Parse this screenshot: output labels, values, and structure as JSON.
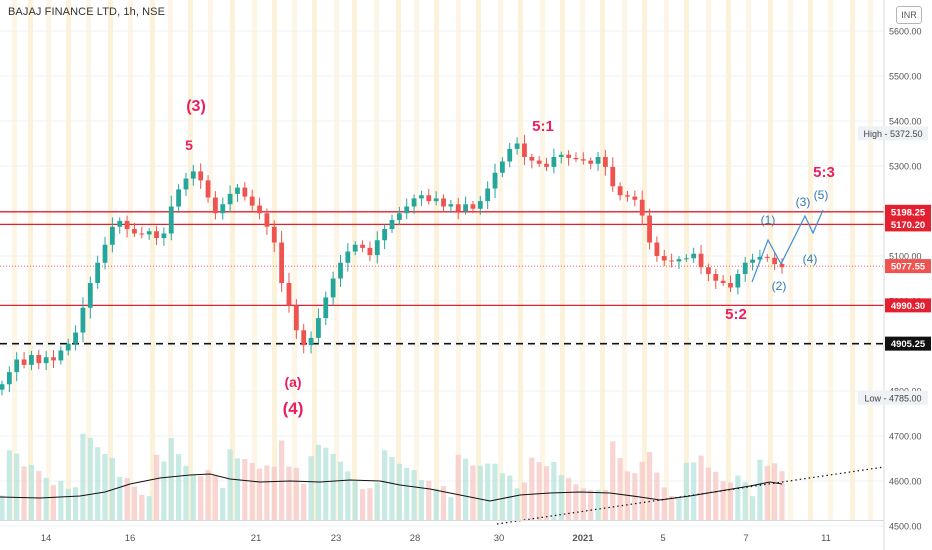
{
  "header": {
    "title": "BAJAJ FINANCE LTD, 1h, NSE",
    "currency": "INR"
  },
  "chart_data": {
    "type": "candlestick",
    "price_axis": {
      "ticks": [
        "5600.00",
        "5500.00",
        "5400.00",
        "5300.00",
        "5200.00",
        "5100.00",
        "5000.00",
        "4900.00",
        "4800.00",
        "4700.00",
        "4600.00",
        "4500.00"
      ]
    },
    "time_axis": {
      "ticks": [
        "14",
        "16",
        "21",
        "23",
        "28",
        "30",
        "2021",
        "5",
        "7",
        "11"
      ]
    },
    "high_label": "High - 5372.50",
    "low_label": "Low - 4785.00",
    "levels": [
      {
        "value": 5198.25,
        "label": "5198.25",
        "style": "solid",
        "color": "#e3202f"
      },
      {
        "value": 5170.2,
        "label": "5170.20",
        "style": "solid",
        "color": "#e3202f"
      },
      {
        "value": 5077.55,
        "label": "5077.55",
        "style": "dotted",
        "color": "#e3202f"
      },
      {
        "value": 4990.3,
        "label": "4990.30",
        "style": "solid",
        "color": "#e3202f"
      },
      {
        "value": 4905.25,
        "label": "4905.25",
        "style": "dashed",
        "color": "#111111"
      }
    ],
    "wave_labels_major": [
      "(3)",
      "5",
      "(a)",
      "(4)",
      "5:1",
      "5:2",
      "5:3"
    ],
    "wave_labels_projection": [
      "(1)",
      "(2)",
      "(3)",
      "(4)",
      "(5)"
    ],
    "close_series": [
      4815,
      4842,
      4870,
      4858,
      4880,
      4862,
      4875,
      4868,
      4890,
      4905,
      4930,
      4985,
      5040,
      5085,
      5125,
      5165,
      5178,
      5160,
      5150,
      5148,
      5155,
      5140,
      5150,
      5210,
      5248,
      5272,
      5288,
      5268,
      5230,
      5195,
      5215,
      5238,
      5252,
      5232,
      5212,
      5195,
      5165,
      5130,
      5040,
      4990,
      4935,
      4902,
      4918,
      4962,
      5008,
      5050,
      5085,
      5110,
      5125,
      5118,
      5102,
      5135,
      5160,
      5180,
      5195,
      5210,
      5228,
      5235,
      5222,
      5228,
      5210,
      5215,
      5200,
      5215,
      5205,
      5222,
      5250,
      5285,
      5310,
      5338,
      5350,
      5320,
      5312,
      5305,
      5298,
      5320,
      5325,
      5318,
      5315,
      5312,
      5305,
      5320,
      5298,
      5255,
      5235,
      5232,
      5225,
      5190,
      5130,
      5100,
      5090,
      5088,
      5093,
      5095,
      5105,
      5075,
      5060,
      5045,
      5040,
      5030,
      5060,
      5085,
      5092,
      5098,
      5096,
      5082,
      5075
    ],
    "volume_avg_color": "#111111",
    "colors": {
      "up": "#26a69a",
      "down": "#ef5350",
      "label_major": "#e91e63",
      "label_projection": "#2f7ab5",
      "projection_line": "#3b8fd6"
    }
  }
}
